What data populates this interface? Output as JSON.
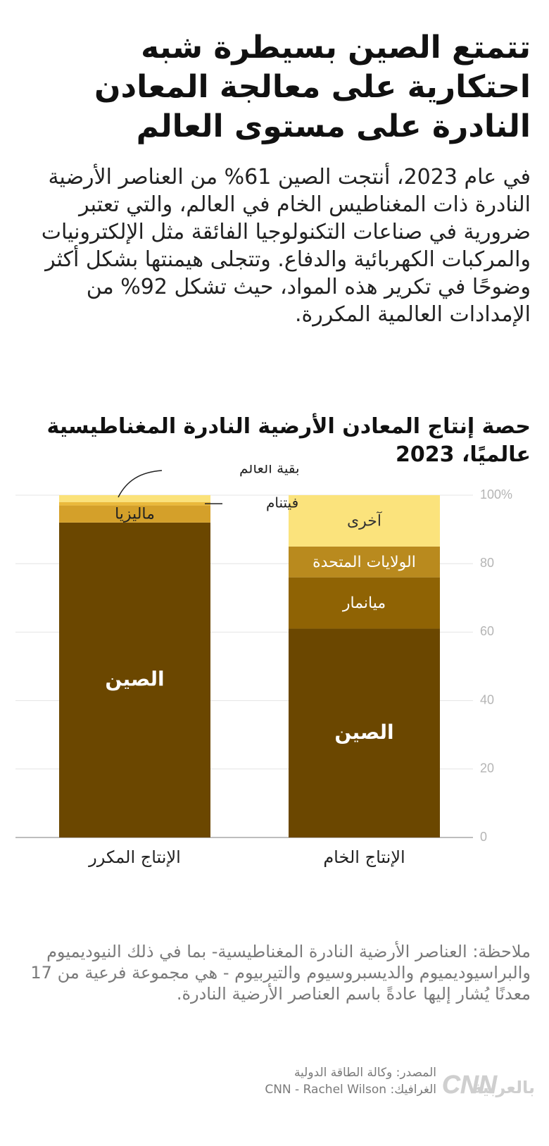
{
  "headline": "تتمتع الصين بسيطرة شبه احتكارية على معالجة المعادن النادرة على مستوى العالم",
  "intro": "في عام 2023، أنتجت الصين 61% من العناصر الأرضية النادرة ذات المغناطيس الخام في العالم، والتي تعتبر ضرورية في صناعات التكنولوجيا الفائقة مثل الإلكترونيات والمركبات الكهربائية والدفاع. وتتجلى هيمنتها بشكل أكثر وضوحًا في تكرير هذه المواد، حيث تشكل 92% من الإمدادات العالمية المكررة.",
  "chart_data": {
    "type": "bar",
    "stacked": true,
    "title": "حصة إنتاج المعادن الأرضية النادرة المغناطيسية عالميًا، 2023",
    "categories": [
      "الإنتاج الخام",
      "الإنتاج المكرر"
    ],
    "y_ticks": [
      "0",
      "20",
      "40",
      "60",
      "80",
      "100%"
    ],
    "ylim": [
      0,
      100
    ],
    "grid": true,
    "axis_side": "right",
    "series": [
      {
        "name": "الصين",
        "values": [
          61,
          92
        ],
        "color": "#6b4700",
        "label_color": "#ffffff"
      },
      {
        "name": "ميانمار",
        "values": [
          15,
          0
        ],
        "color": "#8f6304",
        "label_color": "#ffffff"
      },
      {
        "name": "الولايات المتحدة",
        "values": [
          9,
          0
        ],
        "color": "#b98a1e",
        "label_color": "#ffffff"
      },
      {
        "name": "ماليزيا",
        "values": [
          0,
          5
        ],
        "color": "#d4a02a",
        "label_color": "#222222"
      },
      {
        "name": "فيتنام",
        "values": [
          0,
          1
        ],
        "color": "#eab93c",
        "label_color": "#222222"
      },
      {
        "name": "آخرى",
        "values": [
          15,
          0
        ],
        "color": "#fbe37c",
        "label_color": "#333333"
      },
      {
        "name": "بقية العالم",
        "values": [
          0,
          2
        ],
        "color": "#fbe27a",
        "label_color": "#222222"
      }
    ],
    "labels_inside": [
      "الصين",
      "ميانمار",
      "الولايات المتحدة",
      "آخرى",
      "الصين",
      "ماليزيا"
    ],
    "callouts": [
      "بقية العالم",
      "فيتنام"
    ]
  },
  "note": "ملاحظة: العناصر الأرضية النادرة المغناطيسية- بما في ذلك النيوديميوم والبراسيوديميوم والديسبروسيوم والتيربيوم - هي مجموعة فرعية من 17 معدنًا يُشار إليها عادةً باسم العناصر الأرضية النادرة.",
  "credits": {
    "source": "المصدر: وكالة الطاقة الدولية",
    "graphic": "الغرافيك: CNN - Rachel Wilson"
  },
  "logo": {
    "text_cnn": "CNN",
    "text_arabic": "بالعربية",
    "color": "#cfcfcf"
  }
}
